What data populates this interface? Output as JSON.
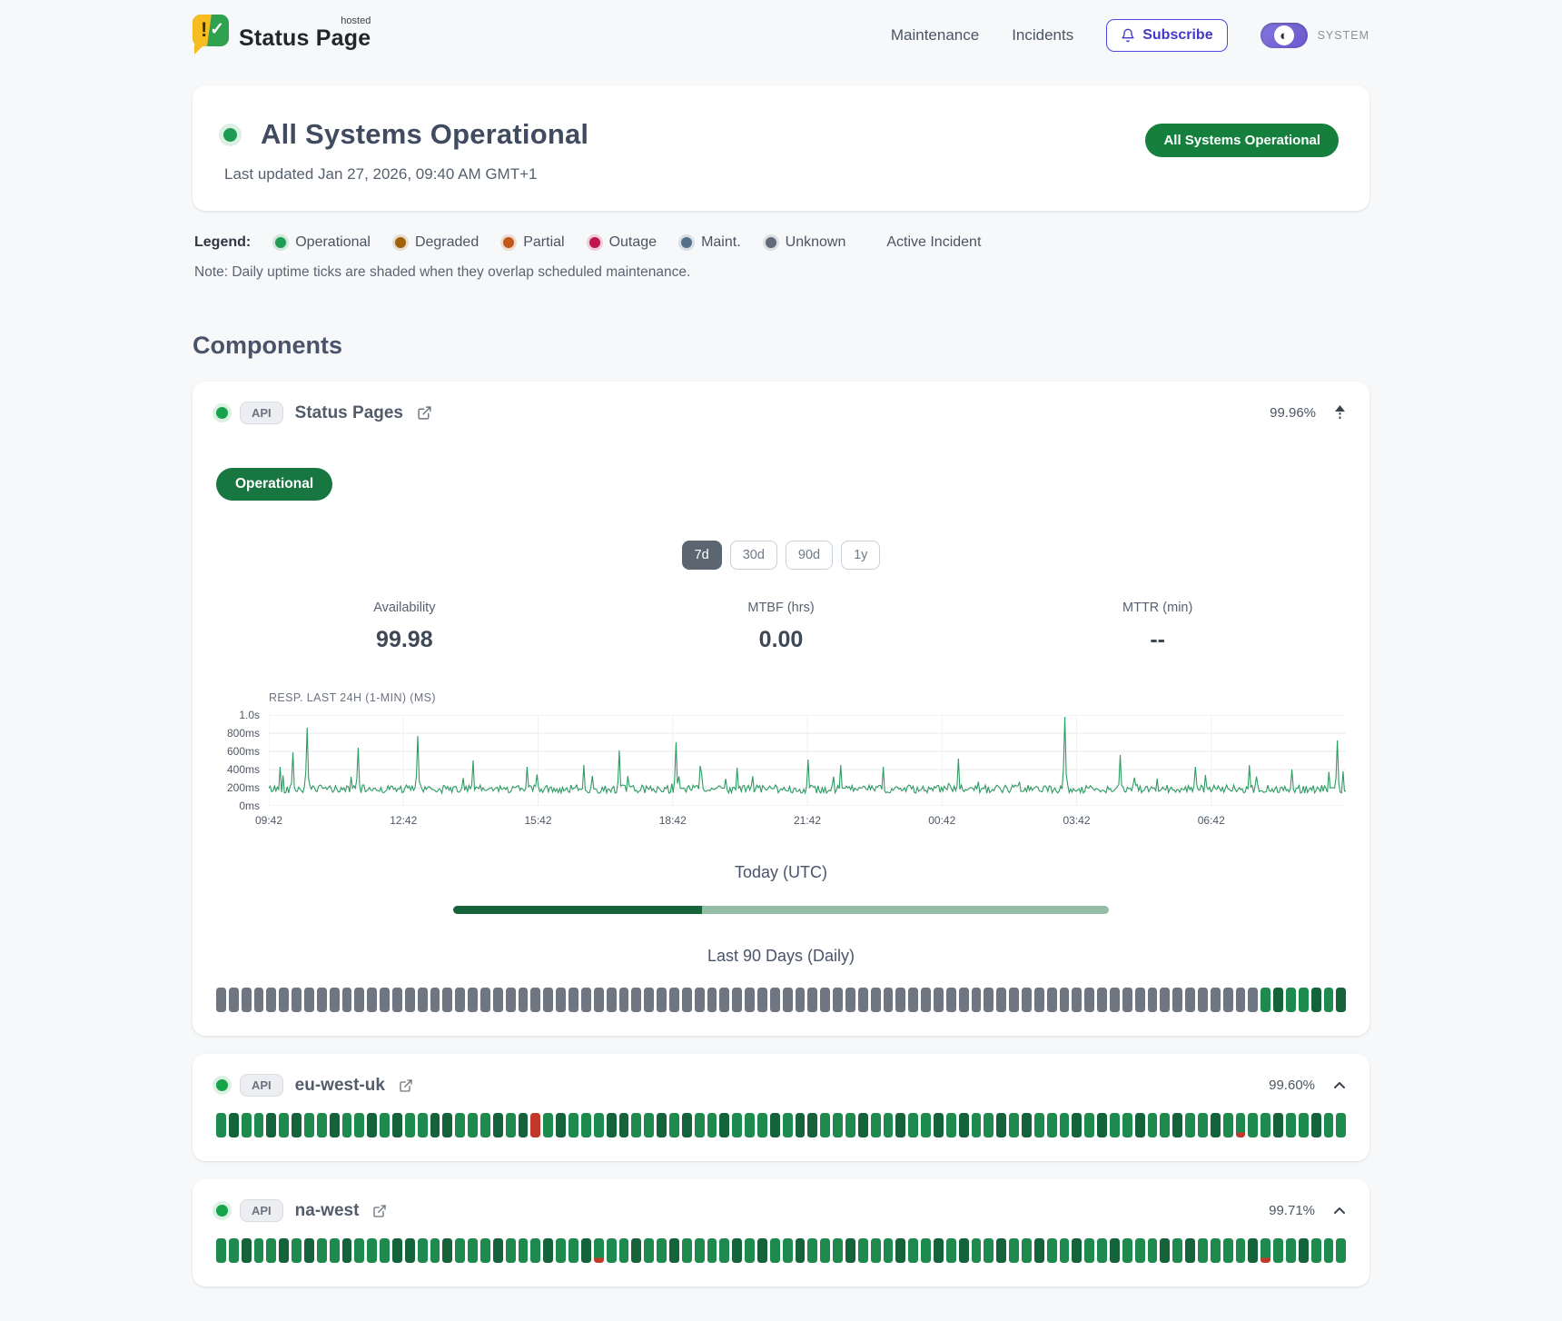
{
  "header": {
    "brand": "Status Page",
    "brand_superscript": "hosted",
    "nav": [
      "Maintenance",
      "Incidents"
    ],
    "subscribe_label": "Subscribe",
    "theme_label": "SYSTEM"
  },
  "hero": {
    "title": "All Systems Operational",
    "last_updated": "Last updated Jan 27, 2026, 09:40 AM GMT+1",
    "badge": "All Systems Operational"
  },
  "legend": {
    "label": "Legend:",
    "items": [
      {
        "label": "Operational",
        "color": "#1f9d55"
      },
      {
        "label": "Degraded",
        "color": "#a16207"
      },
      {
        "label": "Partial",
        "color": "#c2571a"
      },
      {
        "label": "Outage",
        "color": "#bf1650"
      },
      {
        "label": "Maint.",
        "color": "#54718c"
      },
      {
        "label": "Unknown",
        "color": "#5f6b78"
      }
    ],
    "active_incident_label": "Active Incident",
    "note": "Note: Daily uptime ticks are shaded when they overlap scheduled maintenance."
  },
  "components_heading": "Components",
  "tick_palette": {
    "u": "#6e7681",
    "g": "#1f8a4e",
    "d": "#14633a",
    "r": "#c0392b",
    "b": "#1f8a4e"
  },
  "components": {
    "items": [
      {
        "tag": "API",
        "name": "Status Pages",
        "pct": "99.96%",
        "expanded": {
          "status_badge": "Operational",
          "ranges": [
            "7d",
            "30d",
            "90d",
            "1y"
          ],
          "selected_range": "7d",
          "stats": [
            {
              "label": "Availability",
              "value": "99.98"
            },
            {
              "label": "MTBF (hrs)",
              "value": "0.00"
            },
            {
              "label": "MTTR (min)",
              "value": "--"
            }
          ],
          "chart": {
            "type": "line",
            "title": "RESP. LAST 24H (1-MIN) (MS)",
            "color": "#2d9b62",
            "ylim": [
              0,
              1000
            ],
            "y_ticks": [
              "0ms",
              "200ms",
              "400ms",
              "600ms",
              "800ms",
              "1.0s"
            ],
            "x_ticks": [
              "09:42",
              "12:42",
              "15:42",
              "18:42",
              "21:42",
              "00:42",
              "03:42",
              "06:42"
            ],
            "baseline_ms": 185,
            "noise_ms": 45,
            "spikes": [
              {
                "t": 0.01,
                "ms": 430
              },
              {
                "t": 0.022,
                "ms": 590
              },
              {
                "t": 0.035,
                "ms": 860
              },
              {
                "t": 0.083,
                "ms": 640
              },
              {
                "t": 0.138,
                "ms": 770
              },
              {
                "t": 0.19,
                "ms": 500
              },
              {
                "t": 0.24,
                "ms": 430
              },
              {
                "t": 0.293,
                "ms": 450
              },
              {
                "t": 0.325,
                "ms": 610
              },
              {
                "t": 0.378,
                "ms": 700
              },
              {
                "t": 0.4,
                "ms": 440
              },
              {
                "t": 0.435,
                "ms": 420
              },
              {
                "t": 0.5,
                "ms": 510
              },
              {
                "t": 0.531,
                "ms": 450
              },
              {
                "t": 0.57,
                "ms": 430
              },
              {
                "t": 0.64,
                "ms": 520
              },
              {
                "t": 0.739,
                "ms": 980
              },
              {
                "t": 0.79,
                "ms": 560
              },
              {
                "t": 0.86,
                "ms": 430
              },
              {
                "t": 0.91,
                "ms": 450
              },
              {
                "t": 0.95,
                "ms": 400
              },
              {
                "t": 0.992,
                "ms": 720
              }
            ]
          },
          "today": {
            "label": "Today (UTC)",
            "progress_pct": 38,
            "dark_color": "#176339",
            "light_color": "#93bda4"
          },
          "history": {
            "label": "Last 90 Days (Daily)",
            "ticks": "uuuuuuuuuuuuuuuuuuuuuuuuuuuuuuuuuuuuuuuuuuuuuuuuuuuuuuuuuuuuuuuuuuuuuuuuuuuuuuuuuuugdggdgd"
          }
        }
      },
      {
        "tag": "API",
        "name": "eu-west-uk",
        "pct": "99.60%",
        "ticks": "gdggdgdggdggdgdggddgggdgdrgdgggddggdgdggdgggdgddgggdggdggdgdggdgdgggdgdggdggdggdgbggdggdgg"
      },
      {
        "tag": "API",
        "name": "na-west",
        "pct": "99.71%",
        "ticks": "ggdggdgdggdgggddggdgggdgggdggdbggdggdggggdgdggdgggdgggdggdgdggdggdggdggdgggdgdggggdbggdggg"
      }
    ]
  }
}
